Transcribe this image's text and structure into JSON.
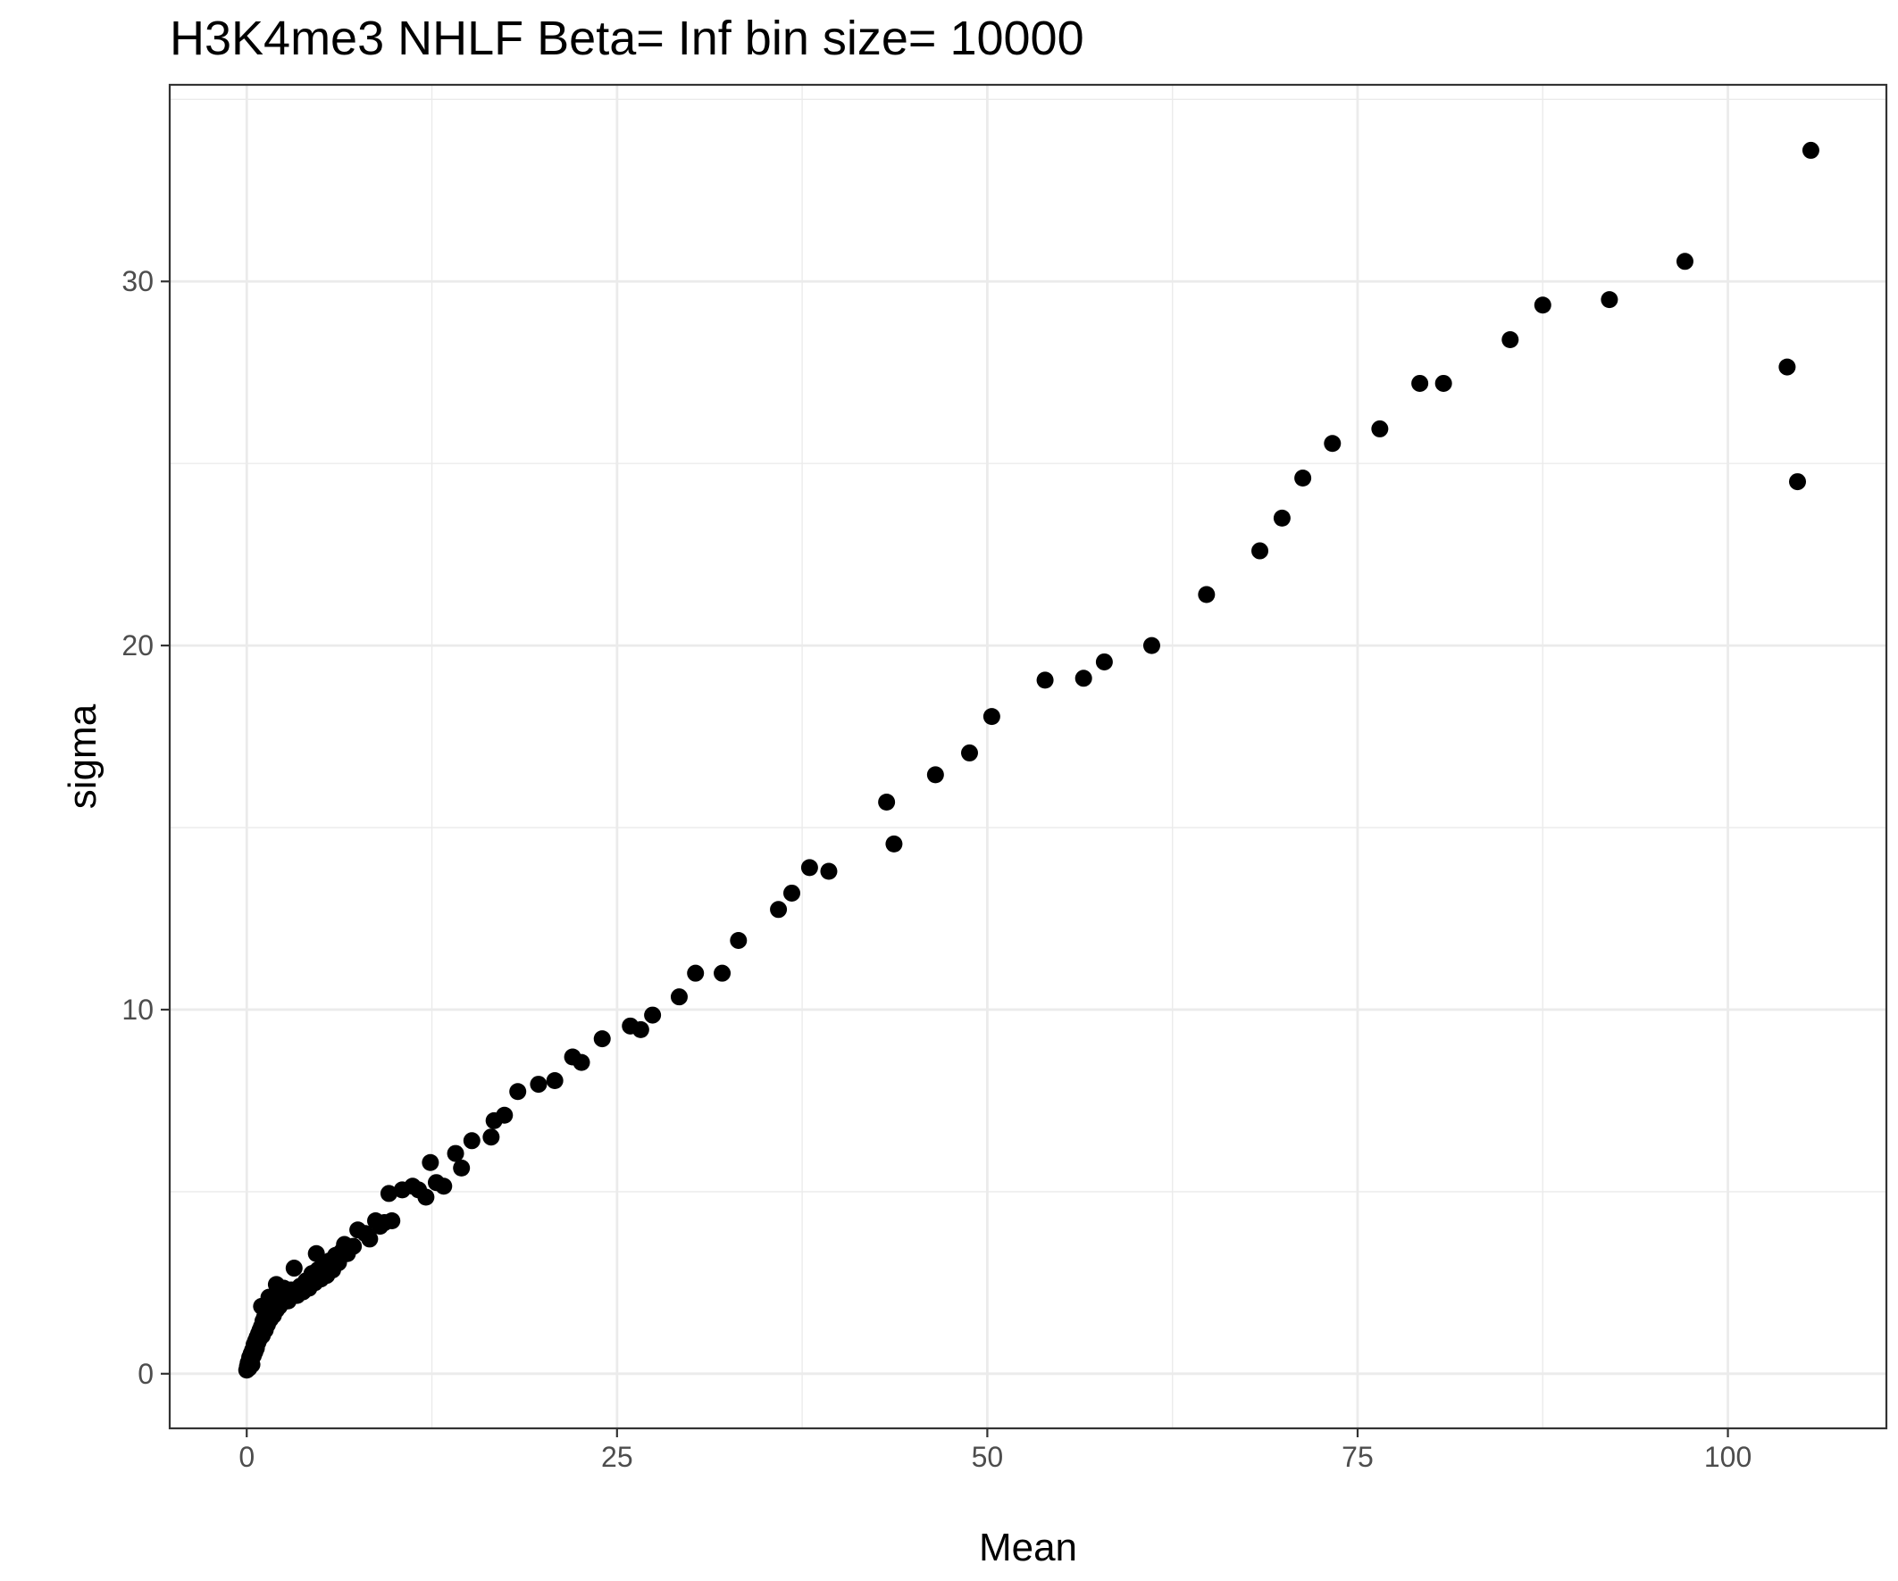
{
  "chart_data": {
    "type": "scatter",
    "title": "H3K4me3 NHLF  Beta=  Inf  bin size=  10000",
    "xlabel": "Mean",
    "ylabel": "sigma",
    "xlim": [
      -5.2,
      110.7
    ],
    "ylim": [
      -1.5,
      35.4
    ],
    "xticks": [
      0,
      25,
      50,
      75,
      100
    ],
    "yticks": [
      0,
      10,
      20,
      30
    ],
    "xtick_labels": [
      "0",
      "25",
      "50",
      "75",
      "100"
    ],
    "ytick_labels": [
      "0",
      "10",
      "20",
      "30"
    ],
    "grid": true,
    "legend": "none",
    "point_color": "#000000",
    "grid_color": "#ebebeb",
    "series": [
      {
        "points": [
          [
            0.0,
            0.1
          ],
          [
            0.05,
            0.2
          ],
          [
            0.1,
            0.3
          ],
          [
            0.15,
            0.15
          ],
          [
            0.2,
            0.45
          ],
          [
            0.25,
            0.35
          ],
          [
            0.3,
            0.55
          ],
          [
            0.35,
            0.25
          ],
          [
            0.4,
            0.65
          ],
          [
            0.45,
            0.5
          ],
          [
            0.5,
            0.8
          ],
          [
            0.55,
            0.6
          ],
          [
            0.6,
            0.9
          ],
          [
            0.65,
            0.7
          ],
          [
            0.7,
            1.0
          ],
          [
            0.75,
            0.85
          ],
          [
            0.8,
            1.1
          ],
          [
            0.85,
            0.95
          ],
          [
            0.9,
            1.2
          ],
          [
            1.0,
            1.3
          ],
          [
            1.05,
            1.05
          ],
          [
            1.1,
            1.45
          ],
          [
            1.2,
            1.55
          ],
          [
            1.25,
            1.2
          ],
          [
            1.3,
            1.65
          ],
          [
            1.4,
            1.35
          ],
          [
            1.5,
            1.8
          ],
          [
            1.6,
            1.5
          ],
          [
            1.7,
            1.95
          ],
          [
            1.8,
            1.6
          ],
          [
            1.9,
            2.05
          ],
          [
            2.0,
            1.75
          ],
          [
            2.1,
            2.2
          ],
          [
            2.2,
            1.85
          ],
          [
            2.3,
            2.3
          ],
          [
            2.4,
            1.95
          ],
          [
            2.5,
            2.35
          ],
          [
            2.6,
            2.05
          ],
          [
            2.7,
            2.2
          ],
          [
            2.8,
            2.0
          ],
          [
            1.0,
            1.85
          ],
          [
            1.5,
            2.1
          ],
          [
            2.0,
            2.45
          ],
          [
            3.0,
            2.3
          ],
          [
            3.2,
            2.9
          ],
          [
            3.4,
            2.15
          ],
          [
            3.6,
            2.4
          ],
          [
            3.8,
            2.25
          ],
          [
            4.0,
            2.55
          ],
          [
            4.2,
            2.35
          ],
          [
            4.4,
            2.75
          ],
          [
            4.6,
            2.5
          ],
          [
            4.8,
            2.85
          ],
          [
            5.0,
            2.6
          ],
          [
            4.7,
            3.3
          ],
          [
            5.2,
            2.95
          ],
          [
            5.4,
            2.7
          ],
          [
            5.6,
            3.1
          ],
          [
            5.8,
            2.85
          ],
          [
            6.0,
            3.25
          ],
          [
            6.2,
            3.05
          ],
          [
            6.4,
            3.35
          ],
          [
            6.6,
            3.55
          ],
          [
            6.8,
            3.3
          ],
          [
            7.2,
            3.5
          ],
          [
            7.5,
            3.95
          ],
          [
            8.0,
            3.85
          ],
          [
            8.3,
            3.7
          ],
          [
            8.7,
            4.2
          ],
          [
            9.0,
            4.05
          ],
          [
            9.3,
            4.15
          ],
          [
            9.6,
            4.95
          ],
          [
            9.8,
            4.2
          ],
          [
            10.5,
            5.05
          ],
          [
            11.2,
            5.15
          ],
          [
            11.6,
            5.05
          ],
          [
            12.1,
            4.85
          ],
          [
            12.4,
            5.8
          ],
          [
            12.8,
            5.25
          ],
          [
            13.3,
            5.15
          ],
          [
            14.1,
            6.05
          ],
          [
            14.5,
            5.65
          ],
          [
            15.2,
            6.4
          ],
          [
            16.5,
            6.5
          ],
          [
            16.7,
            6.95
          ],
          [
            17.4,
            7.1
          ],
          [
            18.3,
            7.75
          ],
          [
            19.7,
            7.95
          ],
          [
            20.8,
            8.05
          ],
          [
            22.0,
            8.7
          ],
          [
            22.6,
            8.55
          ],
          [
            24.0,
            9.2
          ],
          [
            25.9,
            9.55
          ],
          [
            26.6,
            9.45
          ],
          [
            27.4,
            9.85
          ],
          [
            29.2,
            10.35
          ],
          [
            30.3,
            11.0
          ],
          [
            32.1,
            11.0
          ],
          [
            33.2,
            11.9
          ],
          [
            35.9,
            12.75
          ],
          [
            36.8,
            13.2
          ],
          [
            38.0,
            13.9
          ],
          [
            39.3,
            13.8
          ],
          [
            43.2,
            15.7
          ],
          [
            43.7,
            14.55
          ],
          [
            46.5,
            16.45
          ],
          [
            48.8,
            17.05
          ],
          [
            50.3,
            18.05
          ],
          [
            53.9,
            19.05
          ],
          [
            56.5,
            19.1
          ],
          [
            57.9,
            19.55
          ],
          [
            61.1,
            20.0
          ],
          [
            64.8,
            21.4
          ],
          [
            68.4,
            22.6
          ],
          [
            69.9,
            23.5
          ],
          [
            71.3,
            24.6
          ],
          [
            73.3,
            25.55
          ],
          [
            76.5,
            25.95
          ],
          [
            79.2,
            27.2
          ],
          [
            80.8,
            27.2
          ],
          [
            85.3,
            28.4
          ],
          [
            87.5,
            29.35
          ],
          [
            92.0,
            29.5
          ],
          [
            97.1,
            30.55
          ],
          [
            104.0,
            27.65
          ],
          [
            104.7,
            24.5
          ],
          [
            105.6,
            33.6
          ]
        ]
      }
    ]
  }
}
